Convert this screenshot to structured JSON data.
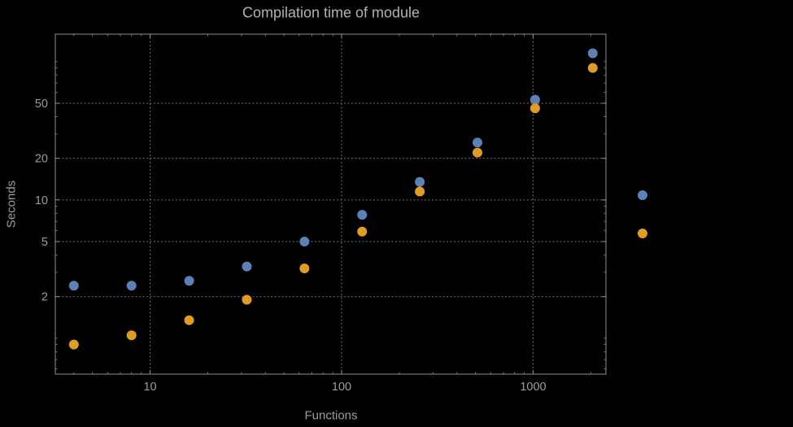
{
  "chart_data": {
    "type": "scatter",
    "title": "Compilation time of module",
    "xlabel": "Functions",
    "ylabel": "Seconds",
    "x_scale": "log",
    "y_scale": "log",
    "xlim": [
      3.2,
      2400
    ],
    "ylim": [
      0.55,
      158
    ],
    "x_ticks": [
      10,
      100,
      1000
    ],
    "y_ticks": [
      2,
      5,
      10,
      20,
      50
    ],
    "grid": "dotted",
    "x": [
      4,
      8,
      16,
      32,
      64,
      128,
      256,
      512,
      1024,
      2048
    ],
    "series": [
      {
        "name": "blue",
        "color": "#5e81b5",
        "values": [
          2.4,
          2.4,
          2.6,
          3.3,
          5.0,
          7.8,
          13.5,
          26,
          53,
          115
        ]
      },
      {
        "name": "orange",
        "color": "#e19c24",
        "values": [
          0.9,
          1.05,
          1.35,
          1.9,
          3.2,
          5.9,
          11.5,
          22,
          46,
          90
        ]
      }
    ],
    "legend_markers": [
      {
        "series": "blue"
      },
      {
        "series": "orange"
      }
    ]
  },
  "colors": {
    "background": "#000000",
    "frame": "#8f8f8f",
    "grid": "#636363",
    "tick_text": "#9c9c9c",
    "title_text": "#b2b2b2"
  }
}
